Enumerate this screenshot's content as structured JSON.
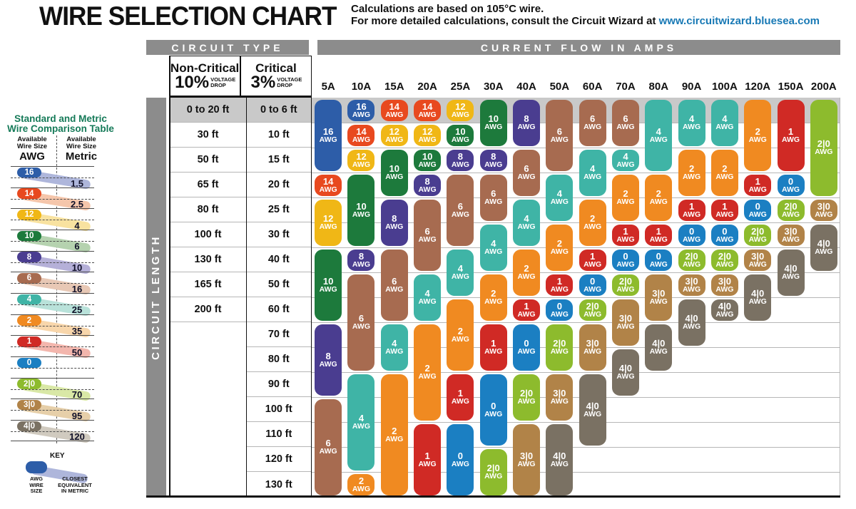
{
  "title": "WIRE SELECTION CHART",
  "notes": {
    "line1": "Calculations are based on 105°C wire.",
    "line2_prefix": "For more detailed calculations, consult the Circuit Wizard at ",
    "line2_link": "www.circuitwizard.bluesea.com",
    "link_color": "#1879b5"
  },
  "table": {
    "circuit_type_label": "CIRCUIT TYPE",
    "current_flow_label": "CURRENT FLOW IN AMPS",
    "circuit_length_label": "CIRCUIT LENGTH",
    "non_critical": {
      "name": "Non-Critical",
      "pct": "10%",
      "drop_line1": "VOLTAGE",
      "drop_line2": "DROP"
    },
    "critical": {
      "name": "Critical",
      "pct": "3%",
      "drop_line1": "VOLTAGE",
      "drop_line2": "DROP"
    }
  },
  "comparison": {
    "title_line1": "Standard and Metric",
    "title_line2": "Wire Comparison Table",
    "left_header_line1": "Available",
    "left_header_line2": "Wire Size",
    "left_header_big": "AWG",
    "right_header_line1": "Available",
    "right_header_line2": "Wire Size",
    "right_header_big": "Metric",
    "rows": [
      {
        "awg": "16",
        "metric": "1.5"
      },
      {
        "awg": "14",
        "metric": "2.5"
      },
      {
        "awg": "12",
        "metric": "4"
      },
      {
        "awg": "10",
        "metric": "6"
      },
      {
        "awg": "8",
        "metric": "10"
      },
      {
        "awg": "6",
        "metric": "16"
      },
      {
        "awg": "4",
        "metric": "25"
      },
      {
        "awg": "2",
        "metric": "35"
      },
      {
        "awg": "1",
        "metric": "50"
      },
      {
        "awg": "0",
        "metric": ""
      },
      {
        "awg": "2|0",
        "metric": "70"
      },
      {
        "awg": "3|0",
        "metric": "95"
      },
      {
        "awg": "4|0",
        "metric": "120"
      }
    ],
    "key": {
      "title": "KEY",
      "left_lines": [
        "AWG",
        "WIRE",
        "SIZE"
      ],
      "right_lines": [
        "CLOSEST",
        "EQUIVALENT",
        "IN METRIC"
      ]
    }
  },
  "wire_colors": {
    "16": "#2d5da8",
    "14": "#e8491f",
    "12": "#f0b716",
    "10": "#1d7a3c",
    "8": "#4a3d90",
    "6": "#a76b50",
    "4": "#3fb4a6",
    "2": "#f08a21",
    "1": "#d02a25",
    "0": "#1b7fc2",
    "2|0": "#8dbb2d",
    "3|0": "#b18348",
    "4|0": "#7a7163"
  },
  "wire_colors_light": {
    "16": "#aeb6db",
    "14": "#f5c6ab",
    "12": "#f8e2a0",
    "10": "#b5d2af",
    "8": "#b5b0d8",
    "6": "#e8c8b5",
    "4": "#b9e2da",
    "2": "#f8d6ab",
    "1": "#f3b6ad",
    "0": "#a9cbe8",
    "2|0": "#d9e8a6",
    "3|0": "#e6cfa9",
    "4|0": "#d0cabf"
  },
  "chart_data": {
    "type": "table",
    "title": "WIRE SELECTION CHART",
    "x_axis_label": "CURRENT FLOW IN AMPS",
    "y_axis_label": "CIRCUIT LENGTH",
    "amps": [
      "5A",
      "10A",
      "15A",
      "20A",
      "25A",
      "30A",
      "40A",
      "50A",
      "60A",
      "70A",
      "80A",
      "90A",
      "100A",
      "120A",
      "150A",
      "200A"
    ],
    "row_labels_non_critical_10pct": [
      "0 to 20 ft",
      "30 ft",
      "50 ft",
      "65 ft",
      "80 ft",
      "100 ft",
      "130 ft",
      "165 ft",
      "200 ft"
    ],
    "row_labels_critical_3pct": [
      "0 to 6 ft",
      "10 ft",
      "15 ft",
      "20 ft",
      "25 ft",
      "30 ft",
      "40 ft",
      "50 ft",
      "60 ft",
      "70 ft",
      "80 ft",
      "90 ft",
      "100 ft",
      "110 ft",
      "120 ft",
      "130 ft"
    ],
    "pill_unit": "AWG",
    "columns": [
      {
        "amp": "5A",
        "pills": [
          [
            "16",
            1,
            3
          ],
          [
            "14",
            4,
            4
          ],
          [
            "12",
            5,
            6
          ],
          [
            "10",
            7,
            9
          ],
          [
            "8",
            10,
            12
          ],
          [
            "6",
            13,
            16
          ]
        ]
      },
      {
        "amp": "10A",
        "pills": [
          [
            "16",
            1,
            1
          ],
          [
            "14",
            2,
            2
          ],
          [
            "12",
            3,
            3
          ],
          [
            "10",
            4,
            6
          ],
          [
            "8",
            7,
            7
          ],
          [
            "6",
            8,
            11
          ],
          [
            "4",
            12,
            15
          ],
          [
            "2",
            16,
            16
          ]
        ]
      },
      {
        "amp": "15A",
        "pills": [
          [
            "14",
            1,
            1
          ],
          [
            "12",
            2,
            2
          ],
          [
            "10",
            3,
            4
          ],
          [
            "8",
            5,
            6
          ],
          [
            "6",
            7,
            9
          ],
          [
            "4",
            10,
            11
          ],
          [
            "2",
            12,
            16
          ]
        ]
      },
      {
        "amp": "20A",
        "pills": [
          [
            "14",
            1,
            1
          ],
          [
            "12",
            2,
            2
          ],
          [
            "10",
            3,
            3
          ],
          [
            "8",
            4,
            4
          ],
          [
            "6",
            5,
            7
          ],
          [
            "4",
            8,
            9
          ],
          [
            "2",
            10,
            13
          ],
          [
            "1",
            14,
            16
          ]
        ]
      },
      {
        "amp": "25A",
        "pills": [
          [
            "12",
            1,
            1
          ],
          [
            "10",
            2,
            2
          ],
          [
            "8",
            3,
            3
          ],
          [
            "6",
            4,
            6
          ],
          [
            "4",
            7,
            8
          ],
          [
            "2",
            9,
            11
          ],
          [
            "1",
            12,
            13
          ],
          [
            "0",
            14,
            16
          ]
        ]
      },
      {
        "amp": "30A",
        "pills": [
          [
            "10",
            1,
            2
          ],
          [
            "8",
            3,
            3
          ],
          [
            "6",
            4,
            5
          ],
          [
            "4",
            6,
            7
          ],
          [
            "2",
            8,
            9
          ],
          [
            "1",
            10,
            11
          ],
          [
            "0",
            12,
            14
          ],
          [
            "2|0",
            15,
            16
          ]
        ]
      },
      {
        "amp": "40A",
        "pills": [
          [
            "8",
            1,
            2
          ],
          [
            "6",
            3,
            4
          ],
          [
            "4",
            5,
            6
          ],
          [
            "2",
            7,
            8
          ],
          [
            "1",
            9,
            9
          ],
          [
            "0",
            10,
            11
          ],
          [
            "2|0",
            12,
            13
          ],
          [
            "3|0",
            14,
            16
          ]
        ]
      },
      {
        "amp": "50A",
        "pills": [
          [
            "6",
            1,
            3
          ],
          [
            "4",
            4,
            5
          ],
          [
            "2",
            6,
            7
          ],
          [
            "1",
            8,
            8
          ],
          [
            "0",
            9,
            9
          ],
          [
            "2|0",
            10,
            11
          ],
          [
            "3|0",
            12,
            13
          ],
          [
            "4|0",
            14,
            16
          ]
        ]
      },
      {
        "amp": "60A",
        "pills": [
          [
            "6",
            1,
            2
          ],
          [
            "4",
            3,
            4
          ],
          [
            "2",
            5,
            6
          ],
          [
            "1",
            7,
            7
          ],
          [
            "0",
            8,
            8
          ],
          [
            "2|0",
            9,
            9
          ],
          [
            "3|0",
            10,
            11
          ],
          [
            "4|0",
            12,
            14
          ]
        ]
      },
      {
        "amp": "70A",
        "pills": [
          [
            "6",
            1,
            2
          ],
          [
            "4",
            3,
            3
          ],
          [
            "2",
            4,
            5
          ],
          [
            "1",
            6,
            6
          ],
          [
            "0",
            7,
            7
          ],
          [
            "2|0",
            8,
            8
          ],
          [
            "3|0",
            9,
            10
          ],
          [
            "4|0",
            11,
            12
          ]
        ]
      },
      {
        "amp": "80A",
        "pills": [
          [
            "4",
            1,
            3
          ],
          [
            "2",
            4,
            5
          ],
          [
            "1",
            6,
            6
          ],
          [
            "0",
            7,
            7
          ],
          [
            "3|0",
            8,
            9
          ],
          [
            "4|0",
            10,
            11
          ]
        ]
      },
      {
        "amp": "90A",
        "pills": [
          [
            "4",
            1,
            2
          ],
          [
            "2",
            3,
            4
          ],
          [
            "1",
            5,
            5
          ],
          [
            "0",
            6,
            6
          ],
          [
            "2|0",
            7,
            7
          ],
          [
            "3|0",
            8,
            8
          ],
          [
            "4|0",
            9,
            10
          ]
        ]
      },
      {
        "amp": "100A",
        "pills": [
          [
            "4",
            1,
            2
          ],
          [
            "2",
            3,
            4
          ],
          [
            "1",
            5,
            5
          ],
          [
            "0",
            6,
            6
          ],
          [
            "2|0",
            7,
            7
          ],
          [
            "3|0",
            8,
            8
          ],
          [
            "4|0",
            9,
            9
          ]
        ]
      },
      {
        "amp": "120A",
        "pills": [
          [
            "2",
            1,
            3
          ],
          [
            "1",
            4,
            4
          ],
          [
            "0",
            5,
            5
          ],
          [
            "2|0",
            6,
            6
          ],
          [
            "3|0",
            7,
            7
          ],
          [
            "4|0",
            8,
            9
          ]
        ]
      },
      {
        "amp": "150A",
        "pills": [
          [
            "1",
            1,
            3
          ],
          [
            "0",
            4,
            4
          ],
          [
            "2|0",
            5,
            5
          ],
          [
            "3|0",
            6,
            6
          ],
          [
            "4|0",
            7,
            8
          ]
        ]
      },
      {
        "amp": "200A",
        "pills": [
          [
            "2|0",
            1,
            4
          ],
          [
            "3|0",
            5,
            5
          ],
          [
            "4|0",
            6,
            7
          ]
        ]
      }
    ]
  }
}
